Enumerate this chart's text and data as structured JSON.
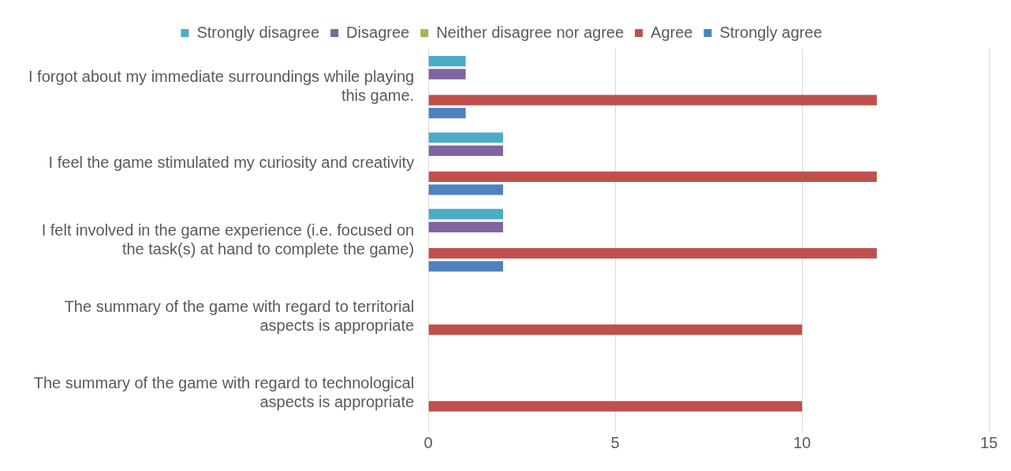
{
  "chart_data": {
    "type": "bar",
    "orientation": "horizontal",
    "categories": [
      "I forgot about my immediate surroundings while playing this game.",
      "I feel the game stimulated my curiosity and creativity",
      "I felt involved in the game experience (i.e. focused on the task(s) at hand to complete the game)",
      "The summary of the game with regard to territorial aspects is appropriate",
      "The summary of the game with regard to technological aspects is appropriate"
    ],
    "series": [
      {
        "name": "Strongly disagree",
        "color": "#4bacc6",
        "values": [
          1,
          2,
          2,
          0,
          0
        ]
      },
      {
        "name": "Disagree",
        "color": "#8064a2",
        "values": [
          1,
          2,
          2,
          0,
          0
        ]
      },
      {
        "name": "Neither disagree nor agree",
        "color": "#9bbb59",
        "values": [
          0,
          0,
          0,
          0,
          0
        ]
      },
      {
        "name": "Agree",
        "color": "#c0504d",
        "values": [
          12,
          12,
          12,
          10,
          10
        ]
      },
      {
        "name": "Strongly agree",
        "color": "#4f81bd",
        "values": [
          1,
          2,
          2,
          0,
          0
        ]
      }
    ],
    "xlim": [
      0,
      15
    ],
    "xticks": [
      0,
      5,
      10,
      15
    ],
    "grid": "x",
    "legend": "top"
  }
}
